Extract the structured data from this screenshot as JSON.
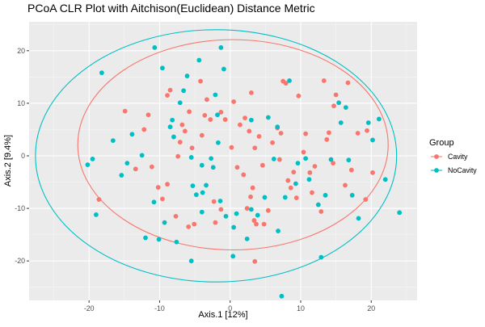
{
  "chart_data": {
    "type": "scatter",
    "title": "PCoA CLR Plot with Aitchison(Euclidean) Distance Metric",
    "xlabel": "Axis.1   [12%]",
    "ylabel": "Axis.2   [9.4%]",
    "xlim": [
      -28.5,
      26.5
    ],
    "ylim": [
      -27.5,
      25.5
    ],
    "x_ticks": [
      -20,
      -10,
      0,
      10,
      20
    ],
    "y_ticks": [
      -20,
      -10,
      0,
      10,
      20
    ],
    "grid": true,
    "legend": {
      "title": "Group",
      "position": "right"
    },
    "series": [
      {
        "name": "Cavity",
        "color": "#F8766D",
        "ellipse": {
          "cx": 0.4,
          "cy": 2.1,
          "rx": 22.0,
          "ry": 20.0
        },
        "points": [
          [
            -18.6,
            -8.3
          ],
          [
            -14.9,
            8.5
          ],
          [
            -13.4,
            -2.5
          ],
          [
            -12.2,
            5.0
          ],
          [
            -11.6,
            7.8
          ],
          [
            -11.1,
            -2.1
          ],
          [
            -10.2,
            -6.0
          ],
          [
            -9.6,
            -8.2
          ],
          [
            -8.9,
            -5.4
          ],
          [
            -8.9,
            11.5
          ],
          [
            -8.5,
            12.5
          ],
          [
            -7.7,
            -11.5
          ],
          [
            -7.4,
            -0.1
          ],
          [
            -7.1,
            2.6
          ],
          [
            -6.8,
            5.9
          ],
          [
            -6.4,
            4.7
          ],
          [
            -5.9,
            -13.5
          ],
          [
            -5.8,
            8.4
          ],
          [
            -5.4,
            1.5
          ],
          [
            -5.1,
            -13.0
          ],
          [
            -4.2,
            14.2
          ],
          [
            -4.0,
            3.9
          ],
          [
            -3.6,
            7.7
          ],
          [
            -3.3,
            10.7
          ],
          [
            -2.8,
            6.9
          ],
          [
            -2.3,
            -8.7
          ],
          [
            -2.1,
            -12.7
          ],
          [
            -1.3,
            8.3
          ],
          [
            -1.3,
            -10.2
          ],
          [
            -0.7,
            6.9
          ],
          [
            0.2,
            1.6
          ],
          [
            0.5,
            10.3
          ],
          [
            1.0,
            -2.2
          ],
          [
            1.4,
            5.9
          ],
          [
            1.9,
            -3.6
          ],
          [
            2.1,
            7.2
          ],
          [
            2.4,
            -10.0
          ],
          [
            2.7,
            4.7
          ],
          [
            2.9,
            -7.8
          ],
          [
            3.0,
            12.0
          ],
          [
            3.2,
            -6.1
          ],
          [
            3.4,
            -12.3
          ],
          [
            3.5,
            1.5
          ],
          [
            3.5,
            -20.1
          ],
          [
            3.7,
            -13.0
          ],
          [
            4.1,
            3.7
          ],
          [
            4.6,
            -1.8
          ],
          [
            4.8,
            -13.0
          ],
          [
            5.4,
            -10.4
          ],
          [
            6.0,
            2.5
          ],
          [
            6.7,
            5.3
          ],
          [
            7.0,
            -0.7
          ],
          [
            7.2,
            4.3
          ],
          [
            7.5,
            14.2
          ],
          [
            7.9,
            13.8
          ],
          [
            8.2,
            -4.7
          ],
          [
            8.6,
            -6.1
          ],
          [
            9.0,
            -3.1
          ],
          [
            9.4,
            -8.0
          ],
          [
            9.7,
            11.4
          ],
          [
            10.4,
            0.7
          ],
          [
            10.7,
            4.2
          ],
          [
            11.3,
            -3.2
          ],
          [
            11.6,
            -7.0
          ],
          [
            12.0,
            -2.0
          ],
          [
            12.9,
            -10.6
          ],
          [
            13.3,
            14.3
          ],
          [
            13.7,
            3.1
          ],
          [
            14.0,
            4.4
          ],
          [
            14.6,
            -1.4
          ],
          [
            14.7,
            9.5
          ],
          [
            15.0,
            11.6
          ],
          [
            16.3,
            -5.6
          ],
          [
            16.7,
            13.9
          ],
          [
            17.2,
            -2.7
          ],
          [
            18.1,
            4.3
          ],
          [
            19.2,
            -8.3
          ],
          [
            19.4,
            4.8
          ],
          [
            20.2,
            -3.2
          ]
        ]
      },
      {
        "name": "NoCavity",
        "color": "#00BFC4",
        "ellipse": {
          "cx": -2.0,
          "cy": 0.0,
          "rx": 25.6,
          "ry": 24.0
        },
        "points": [
          [
            -20.2,
            -1.7
          ],
          [
            -19.5,
            -0.6
          ],
          [
            -19.0,
            -11.2
          ],
          [
            -18.2,
            15.8
          ],
          [
            -16.6,
            2.9
          ],
          [
            -15.4,
            -3.7
          ],
          [
            -14.6,
            -1.4
          ],
          [
            -13.9,
            4.1
          ],
          [
            -12.5,
            0.1
          ],
          [
            -12.0,
            -15.6
          ],
          [
            -10.8,
            -8.8
          ],
          [
            -10.7,
            20.6
          ],
          [
            -10.1,
            -15.9
          ],
          [
            -9.6,
            16.7
          ],
          [
            -9.3,
            -12.7
          ],
          [
            -8.5,
            5.5
          ],
          [
            -8.2,
            6.8
          ],
          [
            -8.0,
            3.6
          ],
          [
            -7.6,
            -16.4
          ],
          [
            -7.1,
            10.1
          ],
          [
            -6.6,
            12.4
          ],
          [
            -6.1,
            15.2
          ],
          [
            -5.5,
            -20.0
          ],
          [
            -5.5,
            -0.3
          ],
          [
            -5.3,
            -5.7
          ],
          [
            -4.8,
            -7.4
          ],
          [
            -4.4,
            18.2
          ],
          [
            -4.0,
            -1.8
          ],
          [
            -4.0,
            -10.7
          ],
          [
            -3.9,
            -7.0
          ],
          [
            -3.4,
            -5.6
          ],
          [
            -2.7,
            -0.5
          ],
          [
            -2.4,
            -2.2
          ],
          [
            -2.1,
            11.6
          ],
          [
            -1.8,
            7.8
          ],
          [
            -1.7,
            2.5
          ],
          [
            -1.4,
            -8.6
          ],
          [
            -1.3,
            20.6
          ],
          [
            -0.9,
            16.5
          ],
          [
            -0.6,
            -11.5
          ],
          [
            0.5,
            -13.6
          ],
          [
            0.9,
            -11.0
          ],
          [
            0.4,
            -19.1
          ],
          [
            2.4,
            -15.8
          ],
          [
            3.0,
            6.8
          ],
          [
            3.0,
            -10.2
          ],
          [
            3.9,
            -11.3
          ],
          [
            4.9,
            -7.9
          ],
          [
            5.4,
            7.3
          ],
          [
            6.2,
            -0.6
          ],
          [
            6.7,
            5.5
          ],
          [
            6.8,
            -14.3
          ],
          [
            7.3,
            -26.7
          ],
          [
            7.8,
            -7.9
          ],
          [
            8.4,
            14.3
          ],
          [
            9.3,
            -5.3
          ],
          [
            9.6,
            -1.4
          ],
          [
            10.7,
            -0.5
          ],
          [
            11.2,
            -4.5
          ],
          [
            12.5,
            -9.3
          ],
          [
            12.9,
            -19.3
          ],
          [
            13.5,
            -7.5
          ],
          [
            14.3,
            -0.7
          ],
          [
            15.4,
            10.1
          ],
          [
            15.7,
            6.3
          ],
          [
            16.4,
            9.2
          ],
          [
            16.8,
            -0.8
          ],
          [
            17.3,
            -7.5
          ],
          [
            18.2,
            -11.9
          ],
          [
            19.6,
            6.3
          ],
          [
            20.2,
            3.0
          ],
          [
            21.1,
            7.0
          ],
          [
            22.0,
            -4.5
          ],
          [
            24.0,
            -10.8
          ]
        ]
      }
    ]
  }
}
